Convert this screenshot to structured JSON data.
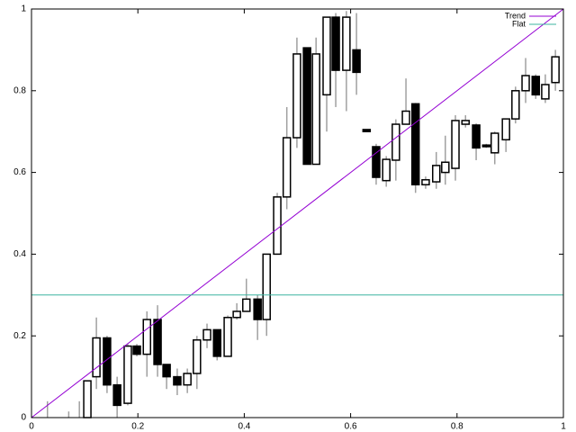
{
  "chart_data": {
    "type": "candlestick",
    "candles": {
      "x": [
        0.03,
        0.07,
        0.09,
        0.105,
        0.122,
        0.142,
        0.161,
        0.181,
        0.198,
        0.217,
        0.237,
        0.254,
        0.274,
        0.293,
        0.311,
        0.33,
        0.349,
        0.369,
        0.386,
        0.404,
        0.425,
        0.442,
        0.462,
        0.48,
        0.499,
        0.518,
        0.535,
        0.555,
        0.572,
        0.592,
        0.611,
        0.63,
        0.648,
        0.667,
        0.685,
        0.704,
        0.722,
        0.741,
        0.761,
        0.778,
        0.797,
        0.816,
        0.836,
        0.855,
        0.871,
        0.892,
        0.91,
        0.929,
        0.948,
        0.966,
        0.985
      ],
      "open": [
        0,
        0,
        0,
        0,
        0.1,
        0.195,
        0.08,
        0.035,
        0.175,
        0.155,
        0.24,
        0.13,
        0.1,
        0.08,
        0.108,
        0.19,
        0.215,
        0.15,
        0.245,
        0.26,
        0.29,
        0.24,
        0.4,
        0.54,
        0.685,
        0.905,
        0.62,
        0.79,
        0.98,
        0.85,
        0.9,
        0.705,
        0.663,
        0.58,
        0.63,
        0.718,
        0.768,
        0.57,
        0.577,
        0.6,
        0.61,
        0.718,
        0.716,
        0.667,
        0.648,
        0.68,
        0.731,
        0.8,
        0.835,
        0.78,
        0.82
      ],
      "low": [
        0,
        0,
        0,
        0,
        0.07,
        0.06,
        0,
        0.03,
        0.15,
        0.1,
        0.1,
        0.07,
        0.055,
        0.06,
        0.07,
        0.17,
        0.14,
        0.15,
        0.24,
        0.26,
        0.19,
        0.2,
        0.4,
        0.51,
        0.66,
        0.62,
        0.62,
        0.7,
        0.76,
        0.75,
        0.79,
        0.7,
        0.57,
        0.565,
        0.58,
        0.72,
        0.55,
        0.56,
        0.56,
        0.57,
        0.58,
        0.71,
        0.63,
        0.66,
        0.62,
        0.65,
        0.72,
        0.77,
        0.78,
        0.77,
        0.8
      ],
      "high": [
        0.04,
        0.015,
        0.04,
        0.09,
        0.245,
        0.2,
        0.1,
        0.18,
        0.18,
        0.26,
        0.275,
        0.13,
        0.12,
        0.12,
        0.2,
        0.23,
        0.215,
        0.25,
        0.28,
        0.34,
        0.3,
        0.4,
        0.55,
        0.76,
        0.93,
        0.905,
        0.93,
        0.98,
        0.99,
        0.995,
        0.99,
        0.705,
        0.67,
        0.64,
        0.73,
        0.83,
        0.77,
        0.59,
        0.65,
        0.69,
        0.74,
        0.74,
        0.72,
        0.67,
        0.7,
        0.73,
        0.81,
        0.88,
        0.84,
        0.84,
        0.9
      ],
      "close": [
        0,
        0,
        0,
        0.09,
        0.195,
        0.08,
        0.03,
        0.175,
        0.155,
        0.24,
        0.13,
        0.1,
        0.08,
        0.108,
        0.19,
        0.215,
        0.15,
        0.245,
        0.26,
        0.29,
        0.24,
        0.4,
        0.54,
        0.685,
        0.89,
        0.62,
        0.89,
        0.98,
        0.85,
        0.98,
        0.845,
        0.7,
        0.588,
        0.632,
        0.718,
        0.75,
        0.57,
        0.582,
        0.617,
        0.625,
        0.727,
        0.727,
        0.66,
        0.663,
        0.696,
        0.731,
        0.8,
        0.837,
        0.79,
        0.815,
        0.883
      ]
    },
    "candle_color": "#000000",
    "whisker_color": "#a0a0a0",
    "lines": [
      {
        "name": "Trend",
        "color": "#9400d3",
        "x": [
          0,
          1
        ],
        "values": [
          0,
          1
        ]
      },
      {
        "name": "Flat",
        "color": "#3cb4a0",
        "x": [
          0,
          1
        ],
        "values": [
          0.3,
          0.3
        ]
      }
    ],
    "legend": "top right",
    "xlim": [
      0,
      1
    ],
    "ylim": [
      0,
      1
    ],
    "xticks": [
      0,
      0.2,
      0.4,
      0.6,
      0.8,
      1
    ],
    "yticks": [
      0,
      0.2,
      0.4,
      0.6,
      0.8,
      1
    ]
  }
}
